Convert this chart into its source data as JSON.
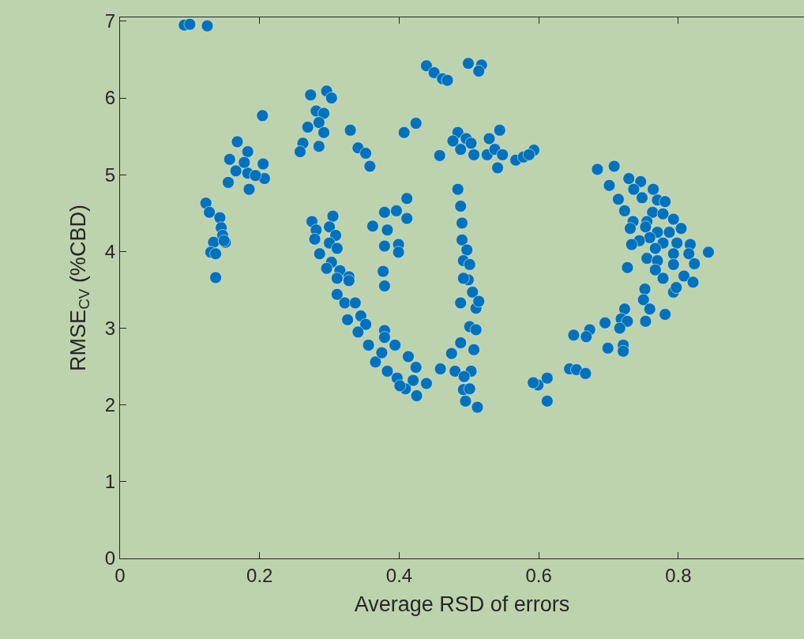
{
  "chart_data": {
    "type": "scatter",
    "xlabel": "Average RSD of errors",
    "ylabel": "RMSE$_{CV}$ (%CBD)",
    "xlim": [
      0,
      0.98
    ],
    "ylim": [
      0,
      7.05
    ],
    "xticks": [
      0,
      0.2,
      0.4,
      0.6,
      0.8
    ],
    "yticks": [
      0,
      1,
      2,
      3,
      4,
      5,
      6,
      7
    ],
    "marker": "circle",
    "series": [
      {
        "color": "#0072bd",
        "x": [
          0.092,
          0.1,
          0.125,
          0.204,
          0.168,
          0.157,
          0.155,
          0.183,
          0.185,
          0.205,
          0.207,
          0.183,
          0.166,
          0.194,
          0.178,
          0.123,
          0.128,
          0.143,
          0.145,
          0.147,
          0.134,
          0.151,
          0.13,
          0.137,
          0.137,
          0.149,
          0.439,
          0.45,
          0.462,
          0.469,
          0.499,
          0.518,
          0.514,
          0.273,
          0.296,
          0.303,
          0.281,
          0.292,
          0.285,
          0.269,
          0.292,
          0.262,
          0.285,
          0.258,
          0.33,
          0.341,
          0.352,
          0.358,
          0.407,
          0.424,
          0.458,
          0.484,
          0.477,
          0.496,
          0.488,
          0.507,
          0.503,
          0.529,
          0.526,
          0.537,
          0.548,
          0.541,
          0.544,
          0.567,
          0.578,
          0.593,
          0.586,
          0.484,
          0.488,
          0.49,
          0.49,
          0.497,
          0.492,
          0.501,
          0.411,
          0.379,
          0.396,
          0.411,
          0.362,
          0.383,
          0.379,
          0.399,
          0.399,
          0.377,
          0.379,
          0.275,
          0.281,
          0.305,
          0.3,
          0.309,
          0.279,
          0.3,
          0.311,
          0.286,
          0.303,
          0.296,
          0.315,
          0.328,
          0.311,
          0.328,
          0.311,
          0.322,
          0.337,
          0.326,
          0.345,
          0.352,
          0.341,
          0.356,
          0.379,
          0.379,
          0.366,
          0.375,
          0.394,
          0.383,
          0.397,
          0.413,
          0.424,
          0.409,
          0.425,
          0.439,
          0.42,
          0.401,
          0.488,
          0.51,
          0.501,
          0.51,
          0.507,
          0.488,
          0.475,
          0.459,
          0.48,
          0.503,
          0.493,
          0.492,
          0.501,
          0.495,
          0.512,
          0.505,
          0.499,
          0.492,
          0.514,
          0.684,
          0.708,
          0.701,
          0.729,
          0.746,
          0.764,
          0.736,
          0.748,
          0.714,
          0.723,
          0.77,
          0.781,
          0.763,
          0.778,
          0.793,
          0.735,
          0.755,
          0.731,
          0.753,
          0.804,
          0.77,
          0.787,
          0.759,
          0.778,
          0.798,
          0.817,
          0.744,
          0.733,
          0.767,
          0.793,
          0.815,
          0.843,
          0.755,
          0.77,
          0.793,
          0.823,
          0.767,
          0.778,
          0.808,
          0.821,
          0.727,
          0.793,
          0.797,
          0.752,
          0.75,
          0.723,
          0.759,
          0.781,
          0.718,
          0.727,
          0.753,
          0.695,
          0.716,
          0.673,
          0.668,
          0.65,
          0.699,
          0.721,
          0.721,
          0.644,
          0.654,
          0.667,
          0.599,
          0.612,
          0.612,
          0.592
        ],
        "values": [
          6.95,
          6.96,
          6.94,
          5.77,
          5.43,
          5.2,
          4.9,
          5.3,
          4.81,
          5.14,
          4.95,
          5.02,
          5.05,
          4.99,
          5.16,
          4.63,
          4.51,
          4.44,
          4.31,
          4.21,
          4.12,
          4.12,
          3.99,
          3.97,
          3.66,
          4.14,
          6.42,
          6.33,
          6.25,
          6.23,
          6.45,
          6.43,
          6.35,
          6.04,
          6.09,
          6.0,
          5.83,
          5.8,
          5.68,
          5.62,
          5.55,
          5.41,
          5.37,
          5.3,
          5.58,
          5.35,
          5.28,
          5.11,
          5.55,
          5.67,
          5.25,
          5.55,
          5.44,
          5.47,
          5.33,
          5.26,
          5.41,
          5.47,
          5.26,
          5.33,
          5.26,
          5.09,
          5.58,
          5.19,
          5.23,
          5.32,
          5.26,
          4.81,
          4.59,
          4.37,
          4.15,
          4.02,
          3.88,
          3.83,
          4.69,
          4.51,
          4.53,
          4.43,
          4.33,
          4.28,
          4.07,
          4.09,
          3.99,
          3.74,
          3.55,
          4.39,
          4.28,
          4.46,
          4.32,
          4.21,
          4.16,
          4.11,
          4.04,
          3.97,
          3.86,
          3.78,
          3.75,
          3.67,
          3.65,
          3.62,
          3.44,
          3.33,
          3.33,
          3.11,
          3.16,
          3.05,
          2.95,
          2.78,
          2.97,
          2.88,
          2.56,
          2.68,
          2.78,
          2.44,
          2.35,
          2.63,
          2.49,
          2.21,
          2.12,
          2.28,
          2.32,
          2.25,
          3.33,
          3.26,
          3.02,
          2.98,
          2.72,
          2.81,
          2.67,
          2.47,
          2.44,
          2.44,
          2.37,
          2.2,
          2.21,
          2.05,
          1.97,
          3.47,
          3.63,
          3.65,
          3.35,
          5.07,
          5.11,
          4.86,
          4.95,
          4.91,
          4.81,
          4.81,
          4.7,
          4.68,
          4.53,
          4.67,
          4.65,
          4.51,
          4.49,
          4.42,
          4.39,
          4.39,
          4.3,
          4.32,
          4.3,
          4.25,
          4.25,
          4.18,
          4.11,
          4.11,
          4.09,
          4.14,
          4.09,
          4.04,
          3.97,
          3.97,
          3.99,
          3.91,
          3.88,
          3.83,
          3.84,
          3.76,
          3.65,
          3.68,
          3.6,
          3.79,
          3.47,
          3.53,
          3.51,
          3.37,
          3.25,
          3.25,
          3.18,
          3.12,
          3.09,
          3.09,
          3.07,
          3.0,
          2.98,
          2.89,
          2.91,
          2.74,
          2.78,
          2.7,
          2.47,
          2.46,
          2.41,
          2.26,
          2.35,
          2.05,
          2.29
        ]
      }
    ]
  }
}
